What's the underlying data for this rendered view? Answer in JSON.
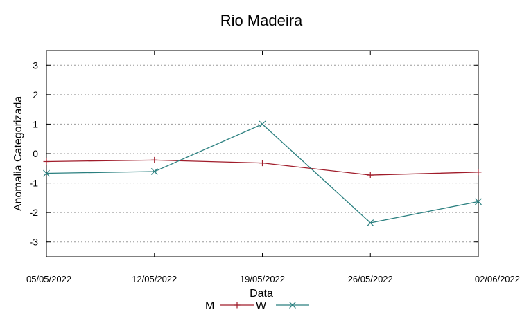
{
  "chart_data": {
    "type": "line",
    "title": "Rio Madeira",
    "xlabel": "Data",
    "ylabel": "Anomalia Categorizada",
    "x": [
      "05/05/2022",
      "12/05/2022",
      "19/05/2022",
      "26/05/2022",
      "02/06/2022"
    ],
    "x_ticks": [
      "05/05/2022",
      "12/05/2022",
      "19/05/2022",
      "26/05/2022",
      "02/06/2022"
    ],
    "y_ticks": [
      "3",
      "2",
      "1",
      "0",
      "-1",
      "-2",
      "-3"
    ],
    "ylim": [
      -3.5,
      3.5
    ],
    "grid": true,
    "legend_position": "bottom",
    "series": [
      {
        "name": "M",
        "color": "#a01c2a",
        "marker": "plus",
        "values": [
          -0.27,
          -0.22,
          -0.32,
          -0.73,
          -0.63
        ]
      },
      {
        "name": "W",
        "color": "#2a7f7f",
        "marker": "x",
        "values": [
          -0.67,
          -0.61,
          1.0,
          -2.35,
          -1.63
        ]
      }
    ]
  }
}
